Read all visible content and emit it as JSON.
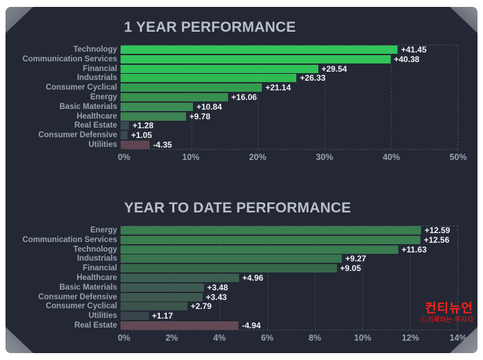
{
  "page": {
    "background": "#ffffff",
    "card_background": "#232834"
  },
  "watermark": {
    "line1": "컨티뉴언",
    "line2": "ⓒ기록하는 투자자",
    "color1": "#f3241c",
    "color2": "#b5181a"
  },
  "chart_data": [
    {
      "type": "bar",
      "orientation": "horizontal",
      "title": "1 YEAR PERFORMANCE",
      "categories": [
        "Technology",
        "Communication Services",
        "Financial",
        "Industrials",
        "Consumer Cyclical",
        "Energy",
        "Basic Materials",
        "Healthcare",
        "Real Estate",
        "Consumer Defensive",
        "Utilities"
      ],
      "values": [
        41.45,
        40.38,
        29.54,
        26.33,
        21.14,
        16.06,
        10.84,
        9.78,
        1.28,
        1.05,
        -4.35
      ],
      "value_labels": [
        "+41.45",
        "+40.38",
        "+29.54",
        "+26.33",
        "+21.14",
        "+16.06",
        "+10.84",
        "+9.78",
        "+1.28",
        "+1.05",
        "-4.35"
      ],
      "bar_colors": [
        "#30c45a",
        "#30c45a",
        "#2fc057",
        "#2fb953",
        "#349c50",
        "#38904f",
        "#3d8b55",
        "#3e8352",
        "#3b4a52",
        "#3b4a52",
        "#5e4550"
      ],
      "xlim": [
        0,
        50
      ],
      "tick_labels": [
        "0%",
        "10%",
        "20%",
        "30%",
        "40%",
        "50%"
      ],
      "tick_values": [
        0,
        10,
        20,
        30,
        40,
        50
      ],
      "grid": "dashed-vertical",
      "legend": "none"
    },
    {
      "type": "bar",
      "orientation": "horizontal",
      "title": "YEAR TO DATE PERFORMANCE",
      "categories": [
        "Energy",
        "Communication Services",
        "Technology",
        "Industrials",
        "Financial",
        "Healthcare",
        "Basic Materials",
        "Consumer Defensive",
        "Consumer Cyclical",
        "Utilities",
        "Real Estate"
      ],
      "values": [
        12.59,
        12.56,
        11.63,
        9.27,
        9.05,
        4.96,
        3.48,
        3.43,
        2.79,
        1.17,
        -4.94
      ],
      "value_labels": [
        "+12.59",
        "+12.56",
        "+11.63",
        "+9.27",
        "+9.05",
        "+4.96",
        "+3.48",
        "+3.43",
        "+2.79",
        "+1.17",
        "-4.94"
      ],
      "bar_colors": [
        "#3a7d50",
        "#3a7d50",
        "#3a7b4f",
        "#38744d",
        "#37684a",
        "#3d5f53",
        "#3d5a50",
        "#3d584f",
        "#3c544c",
        "#3a444b",
        "#634956"
      ],
      "xlim": [
        0,
        14
      ],
      "tick_labels": [
        "0%",
        "2%",
        "4%",
        "6%",
        "8%",
        "10%",
        "12%",
        "14%"
      ],
      "tick_values": [
        0,
        2,
        4,
        6,
        8,
        10,
        12,
        14
      ],
      "grid": "dashed-vertical",
      "legend": "none"
    }
  ]
}
